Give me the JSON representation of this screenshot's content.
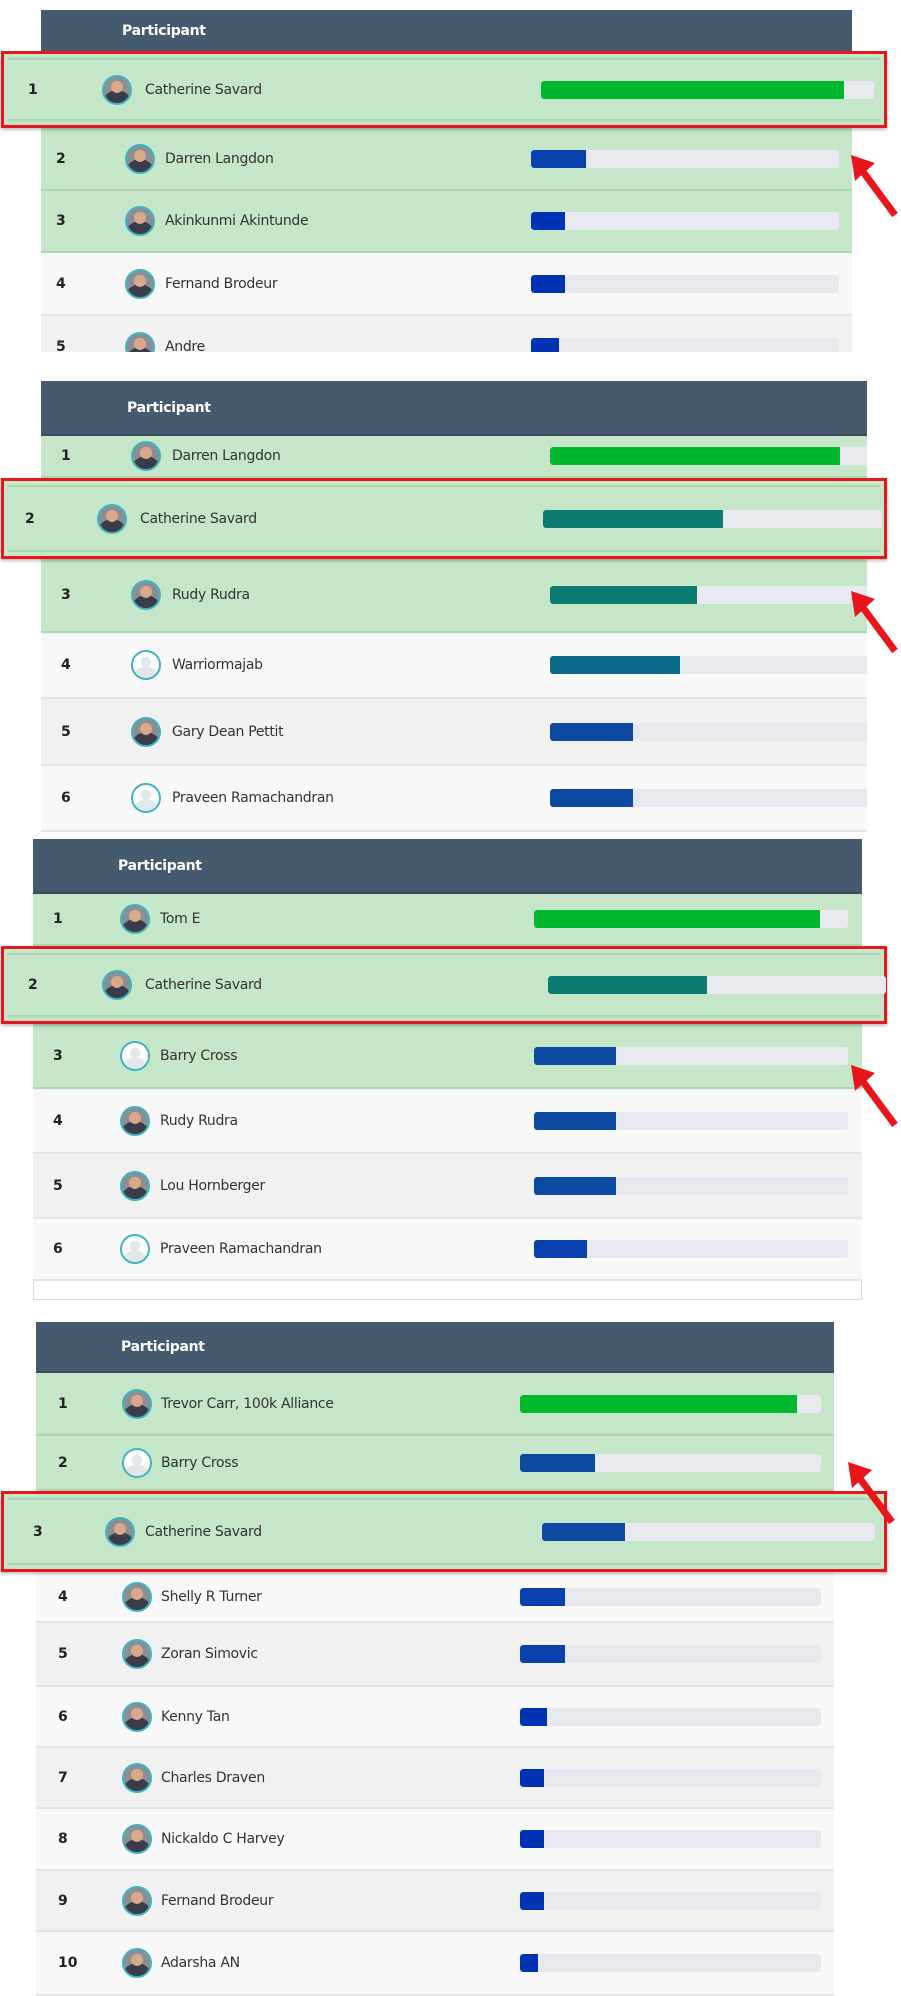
{
  "colors": {
    "header": "#455a6e",
    "top_row": "#c5e6c9",
    "highlight_border": "#e8161b",
    "arrow": "#e8161b",
    "track": "#e7e9ee"
  },
  "panels": [
    {
      "header": "Participant",
      "highlight_rank": 1,
      "rows": [
        {
          "rank": "1",
          "name": "Catherine Savard",
          "progress": 0.91,
          "bar_color": "#00b82e",
          "avatar": "photo"
        },
        {
          "rank": "2",
          "name": "Darren Langdon",
          "progress": 0.18,
          "bar_color": "#0a3fae",
          "avatar": "photo"
        },
        {
          "rank": "3",
          "name": "Akinkunmi Akintunde",
          "progress": 0.11,
          "bar_color": "#0033b3",
          "avatar": "photo"
        },
        {
          "rank": "4",
          "name": "Fernand Brodeur",
          "progress": 0.11,
          "bar_color": "#0033b3",
          "avatar": "photo"
        },
        {
          "rank": "5",
          "name": "Andre",
          "progress": 0.09,
          "bar_color": "#0033b3",
          "avatar": "photo"
        }
      ]
    },
    {
      "header": "Participant",
      "highlight_rank": 2,
      "rows": [
        {
          "rank": "1",
          "name": "Darren Langdon",
          "progress": 0.87,
          "bar_color": "#00b82e",
          "avatar": "photo"
        },
        {
          "rank": "2",
          "name": "Catherine Savard",
          "progress": 0.53,
          "bar_color": "#0b7a70",
          "avatar": "photo"
        },
        {
          "rank": "3",
          "name": "Rudy Rudra",
          "progress": 0.44,
          "bar_color": "#0b7a70",
          "avatar": "photo"
        },
        {
          "rank": "4",
          "name": "Warriormajab",
          "progress": 0.39,
          "bar_color": "#0a6888",
          "avatar": "default"
        },
        {
          "rank": "5",
          "name": "Gary Dean Pettit",
          "progress": 0.25,
          "bar_color": "#0b4aa0",
          "avatar": "photo"
        },
        {
          "rank": "6",
          "name": "Praveen Ramachandran",
          "progress": 0.25,
          "bar_color": "#0b4aa0",
          "avatar": "default"
        }
      ]
    },
    {
      "header": "Participant",
      "highlight_rank": 2,
      "rows": [
        {
          "rank": "1",
          "name": "Tom E",
          "progress": 0.91,
          "bar_color": "#00b82e",
          "avatar": "photo"
        },
        {
          "rank": "2",
          "name": "Catherine Savard",
          "progress": 0.47,
          "bar_color": "#0b7a70",
          "avatar": "photo"
        },
        {
          "rank": "3",
          "name": "Barry Cross",
          "progress": 0.26,
          "bar_color": "#0b4aa0",
          "avatar": "default"
        },
        {
          "rank": "4",
          "name": "Rudy Rudra",
          "progress": 0.26,
          "bar_color": "#0b4aa0",
          "avatar": "photo"
        },
        {
          "rank": "5",
          "name": "Lou Hornberger",
          "progress": 0.26,
          "bar_color": "#0b4aa0",
          "avatar": "photo"
        },
        {
          "rank": "6",
          "name": "Praveen Ramachandran",
          "progress": 0.17,
          "bar_color": "#0a3fae",
          "avatar": "default"
        }
      ]
    },
    {
      "header": "Participant",
      "highlight_rank": 3,
      "rows": [
        {
          "rank": "1",
          "name": "Trevor Carr, 100k Alliance",
          "progress": 0.92,
          "bar_color": "#00b82e",
          "avatar": "photo"
        },
        {
          "rank": "2",
          "name": "Barry Cross",
          "progress": 0.25,
          "bar_color": "#0b4aa0",
          "avatar": "default"
        },
        {
          "rank": "3",
          "name": "Catherine Savard",
          "progress": 0.25,
          "bar_color": "#0b4aa0",
          "avatar": "photo"
        },
        {
          "rank": "4",
          "name": "Shelly R Turner",
          "progress": 0.15,
          "bar_color": "#0a3fae",
          "avatar": "photo"
        },
        {
          "rank": "5",
          "name": "Zoran Simovic",
          "progress": 0.15,
          "bar_color": "#0a3fae",
          "avatar": "photo"
        },
        {
          "rank": "6",
          "name": "Kenny Tan",
          "progress": 0.09,
          "bar_color": "#0033b3",
          "avatar": "photo"
        },
        {
          "rank": "7",
          "name": "Charles Draven",
          "progress": 0.08,
          "bar_color": "#0033b3",
          "avatar": "photo"
        },
        {
          "rank": "8",
          "name": "Nickaldo C Harvey",
          "progress": 0.08,
          "bar_color": "#0033b3",
          "avatar": "photo"
        },
        {
          "rank": "9",
          "name": "Fernand Brodeur",
          "progress": 0.08,
          "bar_color": "#0033b3",
          "avatar": "photo"
        },
        {
          "rank": "10",
          "name": "Adarsha AN",
          "progress": 0.06,
          "bar_color": "#0033b3",
          "avatar": "photo"
        }
      ]
    }
  ]
}
